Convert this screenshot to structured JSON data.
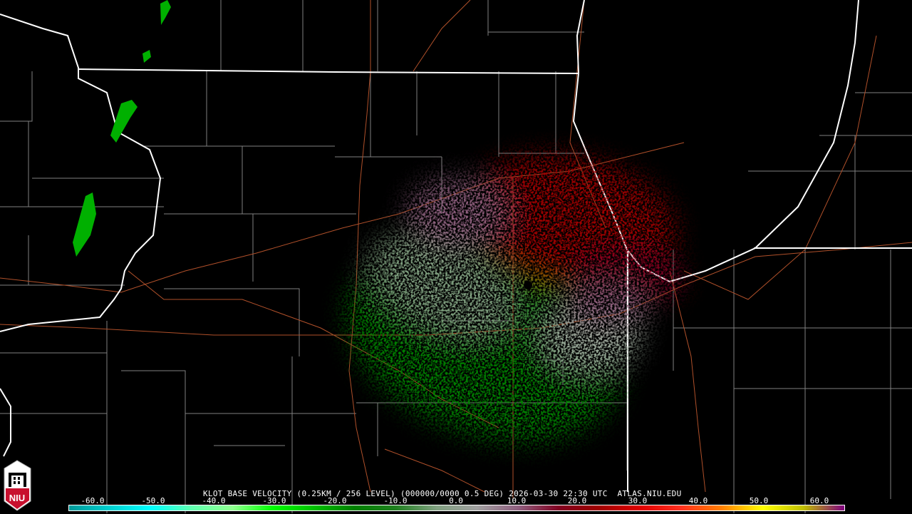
{
  "product": {
    "title": "KLOT BASE VELOCITY (0.25KM / 256 LEVEL) (000000/0000 0.5 DEG) 2026-03-30 22:30 UTC  ATLAS.NIU.EDU"
  },
  "logo": {
    "text": "NIU",
    "color": "#c8102e"
  },
  "colorbar": {
    "units": "velocity",
    "ticks": [
      "-60.0",
      "-50.0",
      "-40.0",
      "-30.0",
      "-20.0",
      "-10.0",
      "0.0",
      "10.0",
      "20.0",
      "30.0",
      "40.0",
      "50.0",
      "60.0"
    ],
    "range": [
      -64,
      64
    ],
    "colors": [
      "#009a9a",
      "#00d0d0",
      "#00ffff",
      "#60ffb0",
      "#90ff90",
      "#00ff00",
      "#00c000",
      "#008000",
      "#208020",
      "#80a080",
      "#a0a0a0",
      "#906080",
      "#800020",
      "#a00000",
      "#e00000",
      "#ff3020",
      "#ff8000",
      "#ffff00",
      "#c0c000",
      "#800080"
    ]
  },
  "map": {
    "radar_site": "KLOT",
    "state_line_color": "#ffffff",
    "county_line_color": "#808080",
    "road_color": "#b0502a",
    "inbound_color": "#008000",
    "outbound_color": "#a00000"
  }
}
